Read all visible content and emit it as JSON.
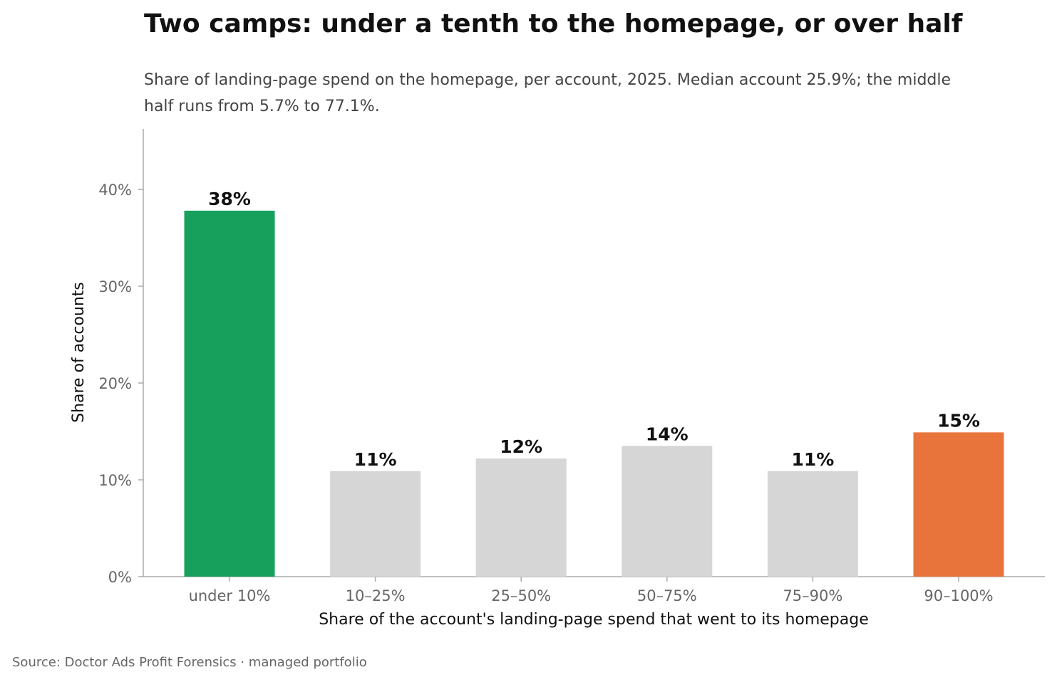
{
  "chart_data": {
    "type": "bar",
    "title": "Two camps: under a tenth to the homepage, or over half",
    "subtitle_lines": [
      "Share of landing-page spend on the homepage, per account, 2025. Median account 25.9%; the middle",
      "half runs from 5.7% to 77.1%."
    ],
    "xlabel": "Share of the account's landing-page spend that went to its homepage",
    "ylabel": "Share of accounts",
    "categories": [
      "under 10%",
      "10–25%",
      "25–50%",
      "50–75%",
      "75–90%",
      "90–100%"
    ],
    "values": [
      37.8,
      10.9,
      12.2,
      13.5,
      10.9,
      14.9
    ],
    "data_labels": [
      "38%",
      "11%",
      "12%",
      "14%",
      "11%",
      "15%"
    ],
    "bar_colors": [
      "#16a05c",
      "#d6d6d6",
      "#d6d6d6",
      "#d6d6d6",
      "#d6d6d6",
      "#e8743b"
    ],
    "ylim": [
      0,
      46
    ],
    "yticks": [
      0,
      10,
      20,
      30,
      40
    ],
    "ytick_labels": [
      "0%",
      "10%",
      "20%",
      "30%",
      "40%"
    ],
    "grid": false,
    "legend": "none"
  },
  "source": "Source: Doctor Ads Profit Forensics · managed portfolio",
  "colors": {
    "axis": "#aaaaaa",
    "tick_text": "#666666",
    "title_text": "#111111"
  }
}
